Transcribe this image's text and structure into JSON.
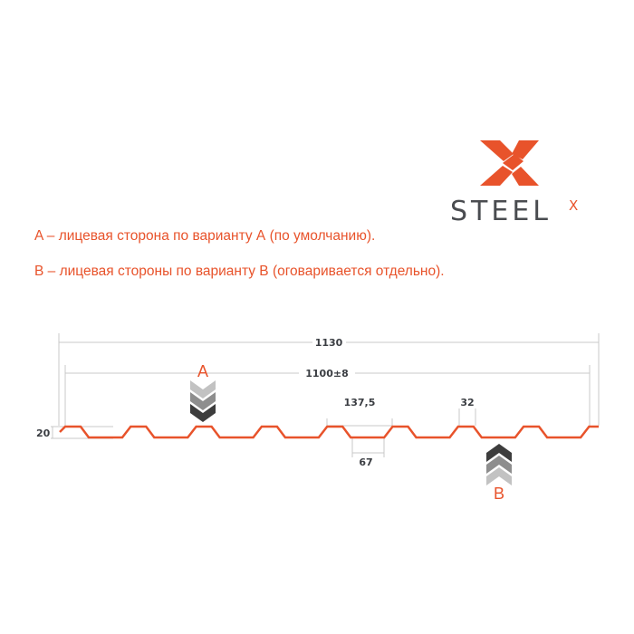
{
  "logo": {
    "text": "STEEL",
    "superscript": "X",
    "accent": "#e8532b",
    "text_color": "#4a4c50"
  },
  "notes": [
    "A – лицевая сторона по варианту А (по умолчанию).",
    "В – лицевая стороны по варианту В (оговаривается отдельно)."
  ],
  "diagram": {
    "overall_width": "1130",
    "working_width": "1100±8",
    "pitch": "137,5",
    "top_width": "32",
    "bottom_width": "67",
    "height": "20",
    "side_a": "A",
    "side_b": "B",
    "profile_color": "#e8532b",
    "dimension_color": "#c8c8c8"
  }
}
